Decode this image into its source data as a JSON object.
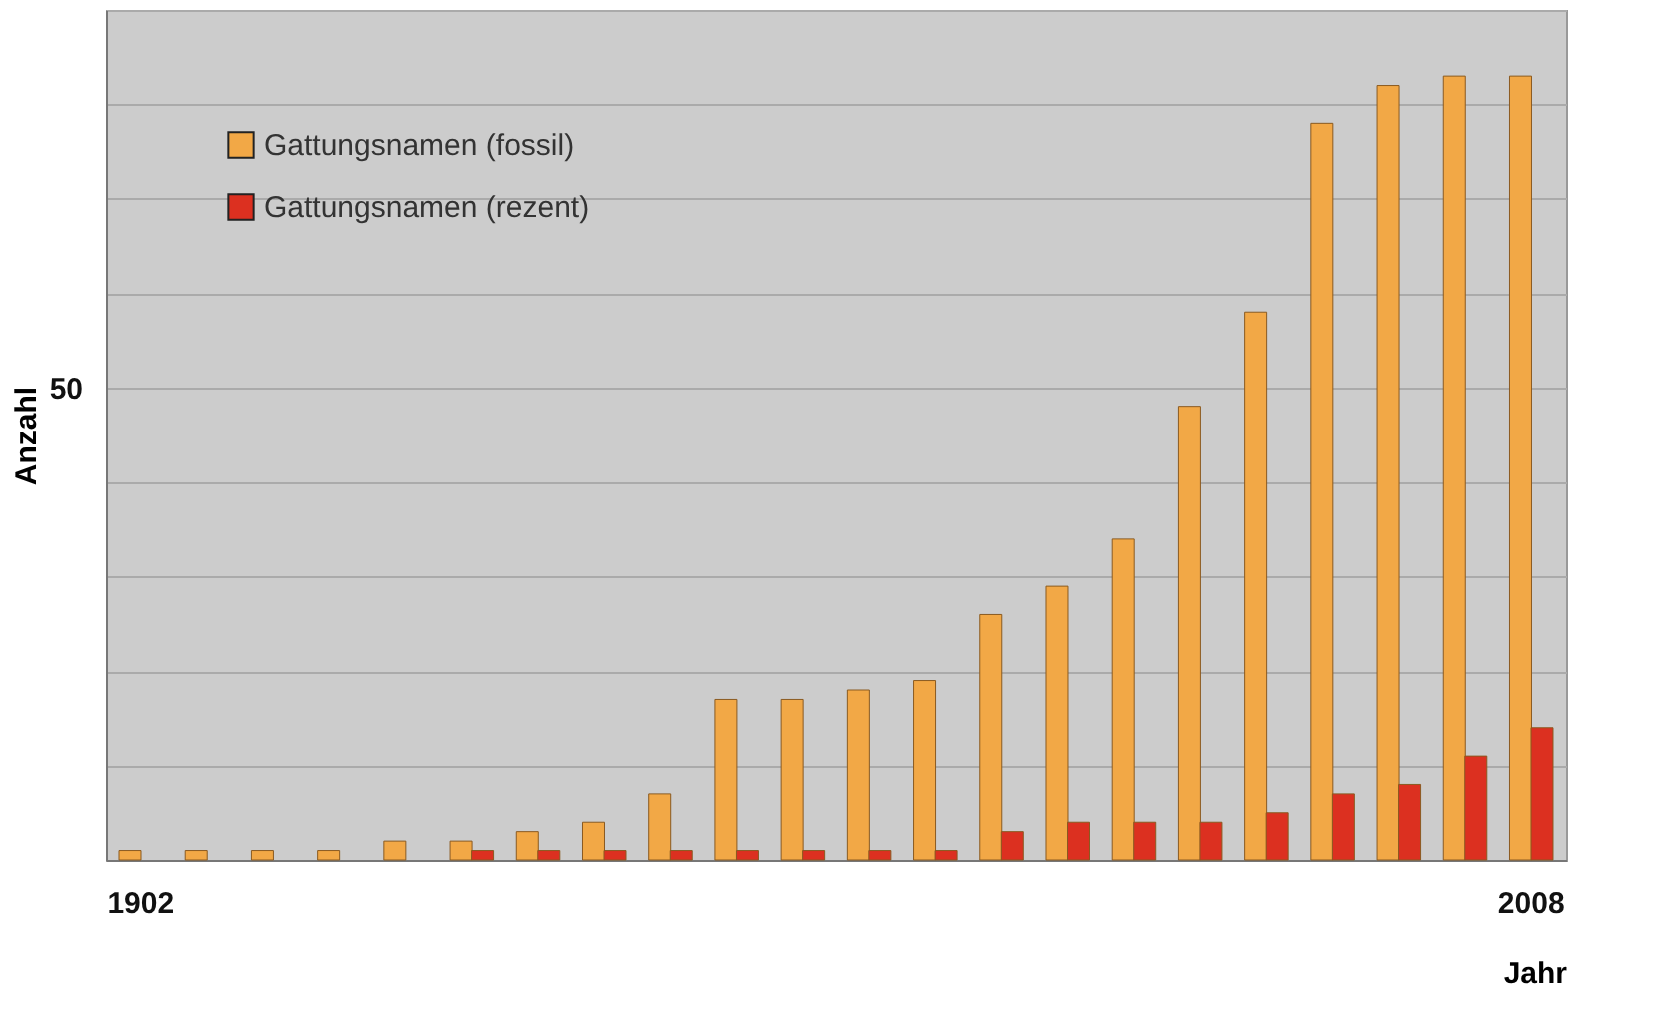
{
  "chart_data": {
    "type": "bar",
    "xlabel": "Jahr",
    "ylabel": "Anzahl",
    "categories": [
      "1902",
      null,
      null,
      null,
      null,
      null,
      null,
      null,
      null,
      null,
      null,
      null,
      null,
      null,
      null,
      null,
      null,
      null,
      null,
      null,
      null,
      "2008"
    ],
    "series": [
      {
        "name": "Gattungsnamen (fossil)",
        "color": "#f2a846",
        "values": [
          1,
          1,
          1,
          1,
          2,
          2,
          3,
          4,
          7,
          17,
          17,
          18,
          19,
          26,
          29,
          34,
          48,
          58,
          78,
          82,
          83,
          83
        ]
      },
      {
        "name": "Gattungsnamen (rezent)",
        "color": "#dc3020",
        "values": [
          null,
          null,
          null,
          null,
          null,
          1,
          1,
          1,
          1,
          1,
          1,
          1,
          1,
          3,
          4,
          4,
          4,
          5,
          7,
          8,
          11,
          14
        ]
      }
    ],
    "ylim": [
      0,
      90
    ],
    "yticks": [
      {
        "value": 0,
        "label": null
      },
      {
        "value": 10,
        "label": null
      },
      {
        "value": 20,
        "label": null
      },
      {
        "value": 30,
        "label": null
      },
      {
        "value": 40,
        "label": null
      },
      50,
      {
        "value": 60,
        "label": null
      },
      {
        "value": 70,
        "label": null
      },
      {
        "value": 80,
        "label": null
      },
      {
        "value": 90,
        "label": null
      }
    ],
    "grid": "y",
    "legend": "top left"
  }
}
